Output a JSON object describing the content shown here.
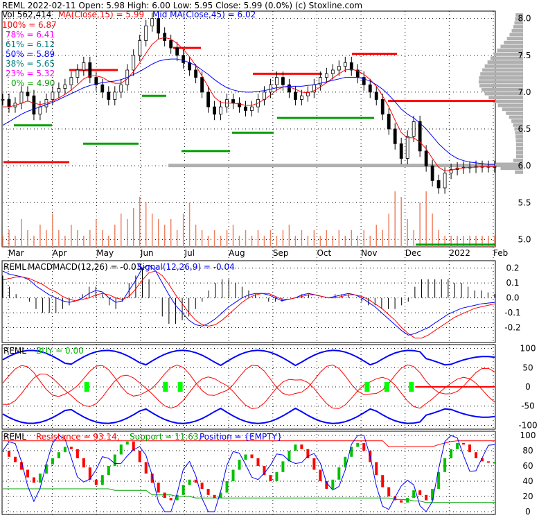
{
  "header": {
    "line1": "REML  2022-02-11 Open: 5.98  High: 6.00  Low: 5.95  Close: 5.99 (0.0%)  (c) Stoxline.com",
    "line2_vol": "Vol 562,414",
    "line2_ma15": "MA(Close,15) = 5.99",
    "line2_ma45": "Mid MA(Close,45) = 6.02"
  },
  "fib_levels": [
    {
      "label": "100% = 6.87",
      "color": "#ff0000"
    },
    {
      "label": "78% = 6.41",
      "color": "#ff00ff"
    },
    {
      "label": "61% = 6.12",
      "color": "#008080"
    },
    {
      "label": "50% = 5.89",
      "color": "#0000ff"
    },
    {
      "label": "38% = 5.65",
      "color": "#008080"
    },
    {
      "label": "23% = 5.32",
      "color": "#ff00ff"
    },
    {
      "label": "0% = 4.90",
      "color": "#00a000"
    }
  ],
  "colors": {
    "ma15": "#ff0000",
    "ma45": "#0000ff",
    "candle": "#000000",
    "volume": "#f08060",
    "resistance": "#ff0000",
    "support": "#00a000",
    "signal": "#ff0000",
    "buy_marker": "#00ff00",
    "profile": "#b0b0b0"
  },
  "chart_data": [
    {
      "type": "candlestick",
      "x_labels": [
        "Mar",
        "Apr",
        "May",
        "Jun",
        "Jul",
        "Aug",
        "Sep",
        "Oct",
        "Nov",
        "Dec",
        "2022",
        "Feb"
      ],
      "y_ticks": [
        "8.0",
        "7.5",
        "7.0",
        "6.5",
        "6.0",
        "5.5",
        "5.0"
      ],
      "ylim": [
        4.9,
        8.1
      ],
      "close_series": [
        6.9,
        6.8,
        6.85,
        7.0,
        6.95,
        6.7,
        6.8,
        6.9,
        7.0,
        7.05,
        7.1,
        7.2,
        7.3,
        7.4,
        7.2,
        7.1,
        7.0,
        6.9,
        7.0,
        7.1,
        7.3,
        7.5,
        7.7,
        7.9,
        8.0,
        7.8,
        7.7,
        7.6,
        7.5,
        7.4,
        7.3,
        7.2,
        7.0,
        6.8,
        6.7,
        6.8,
        6.9,
        6.85,
        6.8,
        6.75,
        6.8,
        6.9,
        7.0,
        7.1,
        7.2,
        7.1,
        7.0,
        6.9,
        6.95,
        7.0,
        7.1,
        7.2,
        7.25,
        7.3,
        7.35,
        7.4,
        7.3,
        7.2,
        7.1,
        7.0,
        6.9,
        6.7,
        6.5,
        6.3,
        6.1,
        6.4,
        6.6,
        6.2,
        6.0,
        5.8,
        5.7,
        5.9,
        5.95,
        5.97,
        5.98,
        5.98,
        5.99,
        5.99,
        5.99,
        5.99
      ],
      "ma15": [
        6.8,
        6.8,
        6.82,
        6.85,
        6.88,
        6.85,
        6.83,
        6.85,
        6.88,
        6.92,
        6.97,
        7.03,
        7.1,
        7.18,
        7.22,
        7.22,
        7.2,
        7.15,
        7.12,
        7.12,
        7.18,
        7.28,
        7.4,
        7.53,
        7.65,
        7.72,
        7.74,
        7.72,
        7.66,
        7.58,
        7.48,
        7.36,
        7.22,
        7.07,
        6.93,
        6.86,
        6.85,
        6.85,
        6.84,
        6.82,
        6.82,
        6.85,
        6.9,
        6.96,
        7.03,
        7.07,
        7.07,
        7.04,
        7.0,
        6.99,
        7.02,
        7.07,
        7.13,
        7.19,
        7.25,
        7.3,
        7.31,
        7.29,
        7.24,
        7.17,
        7.08,
        6.95,
        6.8,
        6.62,
        6.45,
        6.38,
        6.38,
        6.32,
        6.23,
        6.1,
        5.98,
        5.93,
        5.94,
        5.96,
        5.97,
        5.98,
        5.98,
        5.99,
        5.99,
        5.99
      ],
      "ma45": [
        6.55,
        6.6,
        6.65,
        6.7,
        6.74,
        6.77,
        6.8,
        6.83,
        6.86,
        6.9,
        6.94,
        6.98,
        7.02,
        7.06,
        7.09,
        7.11,
        7.13,
        7.14,
        7.15,
        7.17,
        7.2,
        7.24,
        7.28,
        7.33,
        7.38,
        7.42,
        7.44,
        7.45,
        7.45,
        7.43,
        7.4,
        7.36,
        7.3,
        7.24,
        7.17,
        7.11,
        7.06,
        7.03,
        7.01,
        7.0,
        7.0,
        7.01,
        7.02,
        7.04,
        7.06,
        7.07,
        7.08,
        7.08,
        7.08,
        7.09,
        7.1,
        7.12,
        7.14,
        7.16,
        7.18,
        7.2,
        7.2,
        7.2,
        7.18,
        7.15,
        7.1,
        7.04,
        6.96,
        6.87,
        6.77,
        6.7,
        6.65,
        6.58,
        6.5,
        6.4,
        6.3,
        6.22,
        6.15,
        6.1,
        6.07,
        6.05,
        6.04,
        6.03,
        6.02,
        6.02
      ],
      "volume": [
        0.2,
        0.3,
        0.2,
        0.5,
        0.3,
        0.2,
        0.4,
        0.3,
        0.6,
        0.3,
        0.2,
        0.4,
        0.3,
        0.2,
        0.3,
        0.5,
        0.3,
        0.2,
        0.4,
        0.6,
        0.5,
        0.7,
        0.9,
        0.8,
        0.6,
        0.5,
        0.4,
        0.5,
        0.3,
        0.6,
        0.8,
        0.4,
        0.3,
        0.2,
        0.3,
        0.2,
        0.3,
        0.4,
        0.2,
        0.3,
        0.2,
        0.3,
        0.2,
        0.3,
        0.2,
        0.3,
        0.4,
        0.2,
        0.3,
        0.2,
        0.3,
        0.2,
        0.3,
        0.2,
        0.3,
        0.2,
        0.3,
        0.2,
        0.3,
        0.2,
        0.4,
        0.3,
        0.6,
        1.0,
        0.9,
        0.5,
        0.3,
        0.8,
        1.0,
        0.6,
        0.3,
        0.2,
        0.2,
        0.2,
        0.2,
        0.2,
        0.2,
        0.2,
        0.2,
        0.2
      ]
    },
    {
      "type": "line",
      "title_name": "REML",
      "title_macd": "MACDMACD(12,26) = -0.03,",
      "title_signal": "Signal(12,26,9) = -0.04",
      "y_ticks": [
        "0.2",
        "0.1",
        "0.0",
        "-0.1",
        "-0.2"
      ],
      "ylim": [
        -0.3,
        0.25
      ],
      "macd": [
        0.18,
        0.16,
        0.15,
        0.14,
        0.12,
        0.08,
        0.05,
        0.02,
        0.0,
        -0.02,
        -0.03,
        -0.02,
        0.0,
        0.03,
        0.05,
        0.04,
        0.0,
        -0.03,
        -0.02,
        0.05,
        0.12,
        0.2,
        0.22,
        0.18,
        0.1,
        0.02,
        -0.05,
        -0.1,
        -0.15,
        -0.18,
        -0.19,
        -0.17,
        -0.14,
        -0.1,
        -0.06,
        -0.03,
        0.0,
        0.02,
        0.03,
        0.03,
        0.02,
        0.0,
        -0.02,
        -0.01,
        0.0,
        0.02,
        0.03,
        0.02,
        0.01,
        0.0,
        0.01,
        0.02,
        0.03,
        0.02,
        0.0,
        -0.03,
        -0.06,
        -0.1,
        -0.14,
        -0.18,
        -0.22,
        -0.25,
        -0.24,
        -0.22,
        -0.2,
        -0.17,
        -0.14,
        -0.11,
        -0.09,
        -0.07,
        -0.06,
        -0.05,
        -0.04,
        -0.035,
        -0.03
      ],
      "signal": [
        0.12,
        0.13,
        0.14,
        0.14,
        0.13,
        0.11,
        0.09,
        0.06,
        0.04,
        0.01,
        -0.01,
        -0.02,
        -0.01,
        0.0,
        0.02,
        0.03,
        0.02,
        0.0,
        -0.01,
        0.01,
        0.06,
        0.12,
        0.17,
        0.18,
        0.15,
        0.09,
        0.02,
        -0.04,
        -0.1,
        -0.15,
        -0.18,
        -0.19,
        -0.18,
        -0.15,
        -0.11,
        -0.07,
        -0.03,
        0.0,
        0.02,
        0.03,
        0.03,
        0.01,
        -0.01,
        -0.01,
        0.0,
        0.01,
        0.02,
        0.02,
        0.01,
        0.0,
        0.0,
        0.01,
        0.02,
        0.02,
        0.01,
        -0.01,
        -0.04,
        -0.07,
        -0.11,
        -0.15,
        -0.2,
        -0.24,
        -0.27,
        -0.27,
        -0.25,
        -0.22,
        -0.19,
        -0.16,
        -0.13,
        -0.11,
        -0.09,
        -0.07,
        -0.06,
        -0.05,
        -0.04
      ]
    },
    {
      "type": "line",
      "title_name": "REML",
      "title_buy": "BUY = 0.00",
      "y_ticks": [
        "100",
        "50",
        "0",
        "-50",
        "-100"
      ],
      "ylim": [
        -110,
        110
      ],
      "buy_marker_positions": [
        0.17,
        0.33,
        0.36,
        0.74,
        0.78,
        0.83
      ]
    },
    {
      "type": "line",
      "title_name": "REML",
      "title_resistance": "Resistance = 93.14,",
      "title_support": "Support = 11.63,",
      "title_position": "Position = {EMPTY}",
      "y_ticks": [
        "100",
        "80",
        "60",
        "40",
        "20",
        "0"
      ],
      "ylim": [
        0,
        100
      ],
      "stoch": [
        80,
        72,
        65,
        55,
        45,
        38,
        50,
        62,
        70,
        78,
        85,
        82,
        70,
        58,
        42,
        35,
        48,
        60,
        75,
        88,
        92,
        80,
        65,
        50,
        38,
        25,
        18,
        15,
        22,
        35,
        42,
        38,
        30,
        22,
        18,
        25,
        40,
        55,
        68,
        75,
        70,
        60,
        48,
        40,
        52,
        66,
        80,
        88,
        82,
        70,
        55,
        40,
        30,
        42,
        58,
        72,
        85,
        90,
        80,
        65,
        48,
        32,
        20,
        15,
        12,
        18,
        28,
        22,
        15,
        30,
        52,
        70,
        82,
        90,
        88,
        78,
        70,
        66,
        65,
        65
      ],
      "resistance": [
        93,
        93,
        93,
        93,
        93,
        93,
        93,
        93,
        93,
        93,
        93,
        93,
        93,
        93,
        93,
        93,
        93,
        93,
        93,
        93,
        93,
        93,
        93,
        93,
        93,
        93,
        93,
        93,
        93,
        93,
        93,
        93,
        93,
        93,
        93,
        93,
        93,
        93,
        93,
        93,
        93,
        93,
        93,
        93,
        93,
        93,
        93,
        93,
        93,
        93,
        93,
        93,
        93,
        93,
        93,
        93,
        93,
        93,
        93,
        93,
        93,
        93,
        85,
        85,
        85,
        85,
        85,
        85,
        85,
        85,
        88,
        90,
        92,
        93,
        93,
        93,
        93,
        93,
        93,
        93
      ],
      "support": [
        30,
        30,
        30,
        30,
        30,
        30,
        30,
        30,
        30,
        30,
        30,
        30,
        30,
        30,
        30,
        30,
        30,
        30,
        28,
        28,
        28,
        28,
        28,
        28,
        22,
        22,
        22,
        22,
        20,
        20,
        20,
        18,
        18,
        18,
        18,
        18,
        18,
        18,
        18,
        18,
        18,
        18,
        18,
        18,
        18,
        18,
        18,
        18,
        18,
        18,
        18,
        18,
        18,
        18,
        18,
        18,
        18,
        18,
        18,
        18,
        18,
        18,
        18,
        16,
        16,
        16,
        14,
        14,
        12,
        12,
        12,
        12,
        12,
        12,
        12,
        12,
        12,
        12,
        12,
        12
      ]
    }
  ]
}
